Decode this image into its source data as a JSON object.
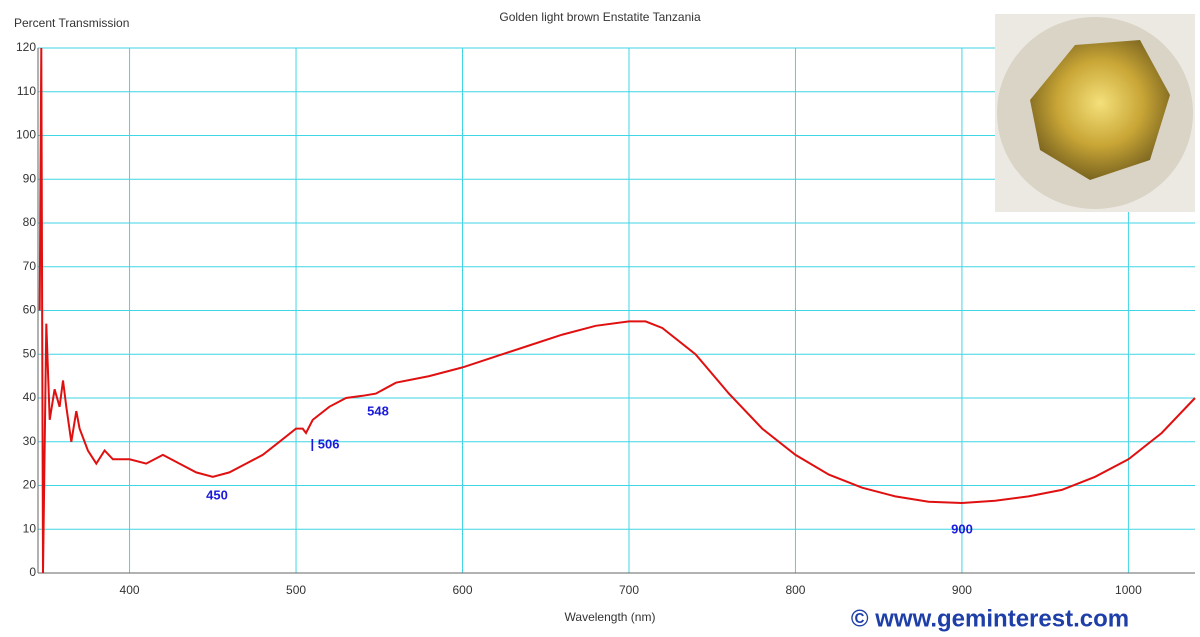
{
  "chart_data": {
    "type": "line",
    "title": "Golden light brown Enstatite Tanzania",
    "y_label": "Percent Transmission",
    "x_label": "Wavelength (nm)",
    "credit": "© www.geminterest.com",
    "annotations": [
      "450",
      "| 506",
      "548",
      "900"
    ],
    "color": "#e01010",
    "x": [
      346,
      347,
      348,
      350,
      352,
      355,
      358,
      360,
      362,
      365,
      368,
      370,
      375,
      380,
      385,
      390,
      400,
      410,
      420,
      430,
      440,
      450,
      460,
      470,
      480,
      490,
      500,
      504,
      506,
      510,
      520,
      530,
      540,
      548,
      560,
      580,
      600,
      620,
      640,
      660,
      680,
      700,
      710,
      720,
      740,
      760,
      780,
      800,
      820,
      840,
      860,
      880,
      900,
      920,
      940,
      960,
      980,
      1000,
      1020,
      1040
    ],
    "values": [
      60,
      120,
      0,
      57,
      35,
      42,
      38,
      44,
      38,
      30,
      37,
      33,
      28,
      25,
      28,
      26,
      26,
      25,
      27,
      25,
      23,
      22,
      23,
      25,
      27,
      30,
      33,
      33,
      32,
      35,
      38,
      40,
      40.5,
      41,
      43.5,
      45,
      47,
      49.5,
      52,
      54.5,
      56.5,
      57.5,
      57.5,
      56,
      50,
      41,
      33,
      27,
      22.5,
      19.5,
      17.5,
      16.3,
      16,
      16.5,
      17.5,
      19,
      22,
      26,
      32,
      40
    ],
    "xlim": [
      345,
      1040
    ],
    "ylim": [
      0,
      120
    ],
    "xticks": [
      400,
      500,
      600,
      700,
      800,
      900,
      1000
    ],
    "yticks": [
      0,
      10,
      20,
      30,
      40,
      50,
      60,
      70,
      80,
      90,
      100,
      110,
      120
    ],
    "grid": true,
    "grid_color": "#3fd6e6"
  }
}
